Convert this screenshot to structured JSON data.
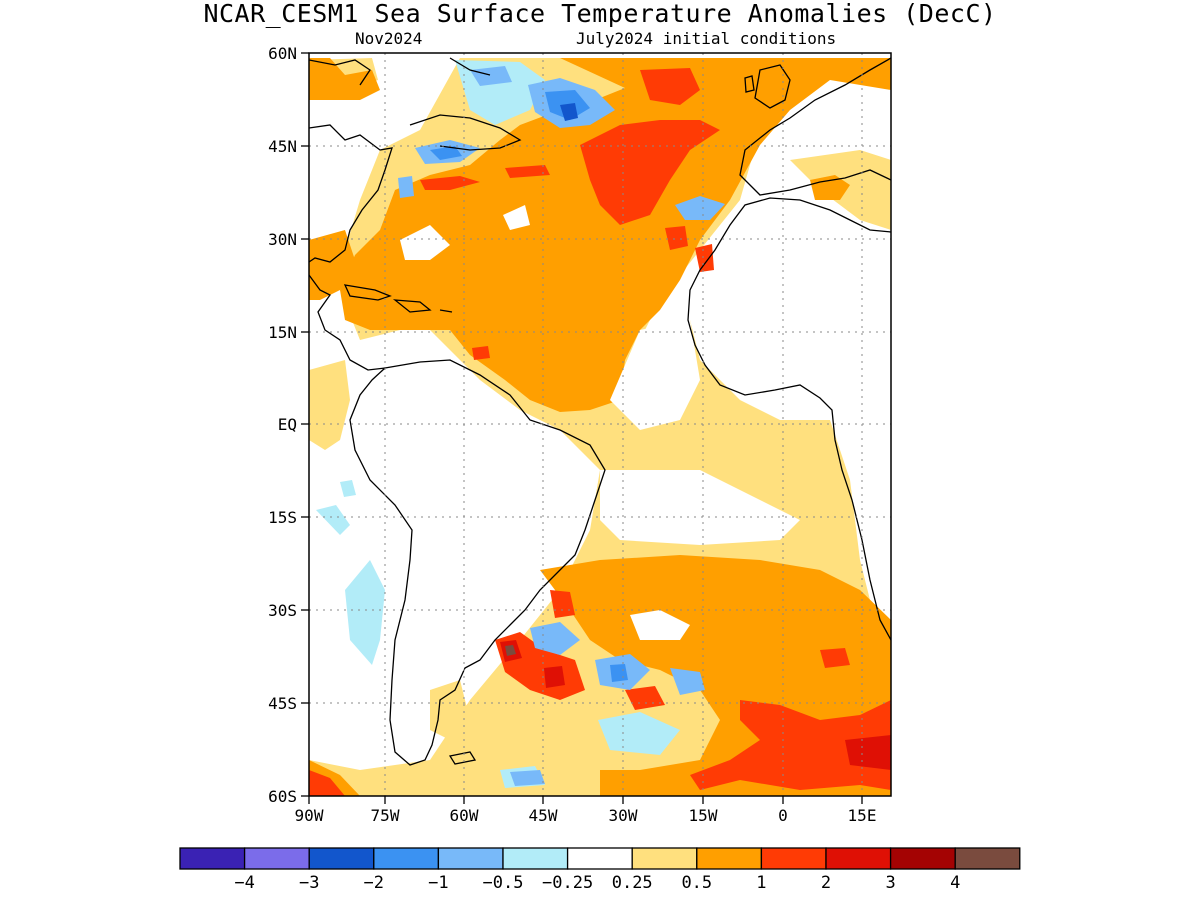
{
  "title": "NCAR_CESM1 Sea Surface Temperature Anomalies (DecC)",
  "subtitle_left": "Nov2024",
  "subtitle_right": "July2024 initial conditions",
  "map": {
    "region": "Atlantic Ocean",
    "lat_range": [
      -60,
      60
    ],
    "lon_range": [
      -90,
      20
    ],
    "lat_labels": [
      "60N",
      "45N",
      "30N",
      "15N",
      "EQ",
      "15S",
      "30S",
      "45S",
      "60S"
    ],
    "lon_labels": [
      "90W",
      "75W",
      "60W",
      "45W",
      "30W",
      "15W",
      "0",
      "15E"
    ]
  },
  "legend": {
    "colors": [
      "#3a22b4",
      "#7b6cea",
      "#1256cc",
      "#3b92f2",
      "#78b9f9",
      "#b2ecf8",
      "#ffffff",
      "#ffe07e",
      "#ff9f00",
      "#ff3b05",
      "#df1005",
      "#a40303",
      "#7a4b3e"
    ],
    "labels": [
      "−4",
      "−3",
      "−2",
      "−1",
      "−0.5",
      "−0.25",
      "0.25",
      "0.5",
      "1",
      "2",
      "3",
      "4"
    ]
  }
}
